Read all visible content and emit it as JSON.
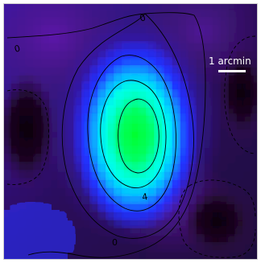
{
  "figure": {
    "scale_bar_label": "1 arcmin",
    "contour_labels": [
      "0",
      "0",
      "0",
      "4"
    ],
    "colors": {
      "background": "#2a0a3a",
      "deep": "#120018",
      "blue": "#1a2cff",
      "cyan": "#00c7ff",
      "green": "#00ff6a",
      "contour": "#000000",
      "scale": "#ffffff"
    },
    "colormap": [
      "#120018",
      "#4a1470",
      "#2a1ab0",
      "#1a2cff",
      "#00aaff",
      "#00ff6a"
    ]
  }
}
